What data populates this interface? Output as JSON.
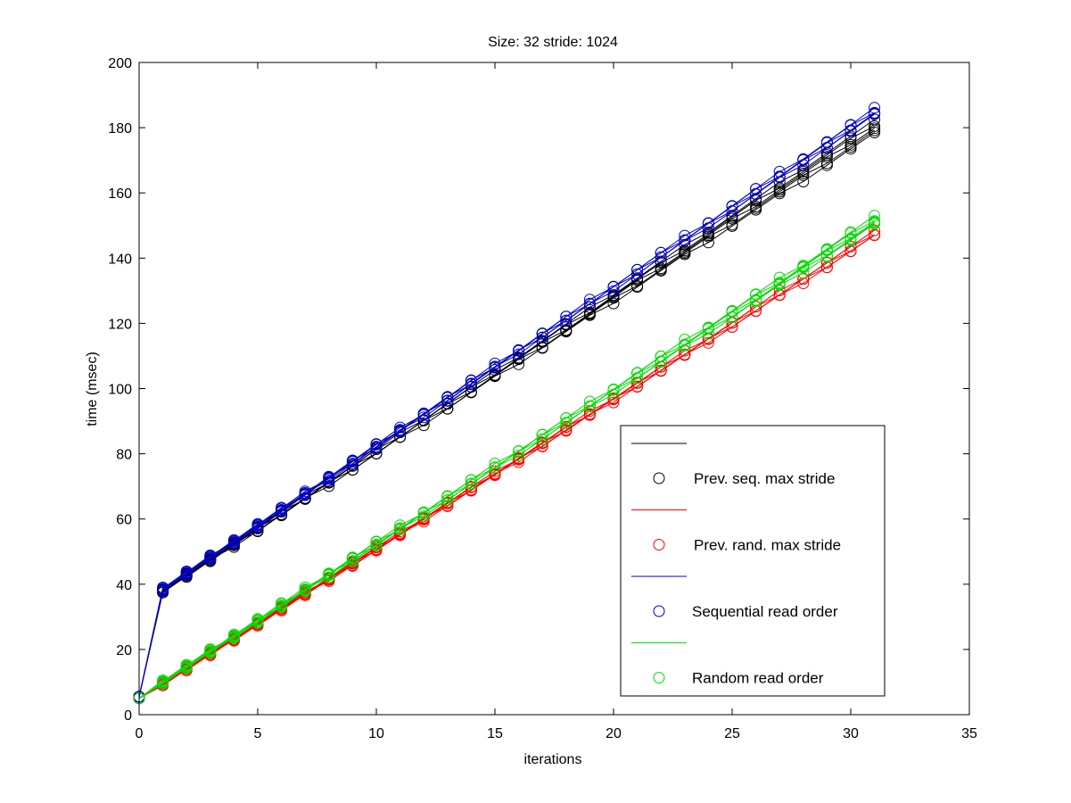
{
  "chart_data": {
    "type": "line",
    "title": "Size: 32 stride: 1024",
    "xlabel": "iterations",
    "ylabel": "time (msec)",
    "xlim": [
      0,
      35
    ],
    "ylim": [
      0,
      200
    ],
    "xticks": [
      0,
      5,
      10,
      15,
      20,
      25,
      30,
      35
    ],
    "yticks": [
      0,
      20,
      40,
      60,
      80,
      100,
      120,
      140,
      160,
      180,
      200
    ],
    "grid": false,
    "legend_position": "lower-right",
    "series": [
      {
        "name": "Prev. seq. max stride",
        "color": "#000000",
        "x0": 0,
        "y0": 5.5,
        "x1": 1,
        "y1": 38,
        "slope": 4.75,
        "spread": [
          -2.5,
          1.5
        ]
      },
      {
        "name": "Prev. rand. max stride",
        "color": "#ff0000",
        "x0": 0,
        "y0": 5,
        "x1": 1,
        "y1": 9.5,
        "slope": 4.6,
        "spread": [
          -1,
          0.5
        ]
      },
      {
        "name": "Sequential read order",
        "color": "#0000cc",
        "x0": 0,
        "y0": 5.5,
        "x1": 1,
        "y1": 38.5,
        "slope": 4.87,
        "spread": [
          -1,
          1
        ]
      },
      {
        "name": "Random read order",
        "color": "#00dd00",
        "x0": 0,
        "y0": 5,
        "x1": 1,
        "y1": 10,
        "slope": 4.7,
        "spread": [
          -1,
          1.5
        ]
      }
    ],
    "runs_per_series": 5,
    "x_points": [
      0,
      1,
      2,
      3,
      4,
      5,
      6,
      7,
      8,
      9,
      10,
      11,
      12,
      13,
      14,
      15,
      16,
      17,
      18,
      19,
      20,
      21,
      22,
      23,
      24,
      25,
      26,
      27,
      28,
      29,
      30,
      31
    ]
  }
}
